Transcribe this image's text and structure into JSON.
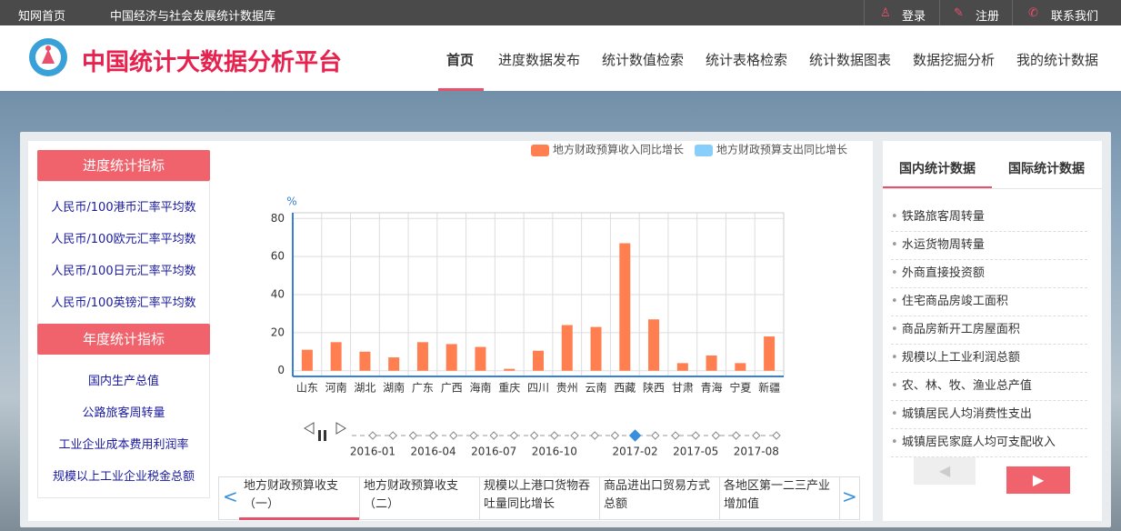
{
  "topbar": {
    "links": [
      "知网首页",
      "中国经济与社会发展统计数据库"
    ],
    "actions": [
      "登录",
      "注册",
      "联系我们"
    ]
  },
  "header": {
    "title": "中国统计大数据分析平台",
    "nav": [
      "首页",
      "进度数据发布",
      "统计数值检索",
      "统计表格检索",
      "统计数据图表",
      "数据挖掘分析",
      "我的统计数据"
    ]
  },
  "left_panel": {
    "sections": [
      {
        "title": "进度统计指标",
        "items": [
          "人民币/100港币汇率平均数",
          "人民币/100欧元汇率平均数",
          "人民币/100日元汇率平均数",
          "人民币/100英镑汇率平均数"
        ]
      },
      {
        "title": "年度统计指标",
        "items": [
          "国内生产总值",
          "公路旅客周转量",
          "工业企业成本费用利润率",
          "规模以上工业企业税金总额"
        ]
      }
    ]
  },
  "chart_data": {
    "type": "bar",
    "y_unit": "%",
    "categories": [
      "山东",
      "河南",
      "湖北",
      "湖南",
      "广东",
      "广西",
      "海南",
      "重庆",
      "四川",
      "贵州",
      "云南",
      "西藏",
      "陕西",
      "甘肃",
      "青海",
      "宁夏",
      "新疆"
    ],
    "series": [
      {
        "name": "地方财政预算收入同比增长",
        "color": "#ff7f50",
        "values": [
          11,
          15,
          10,
          7,
          15,
          14,
          12.5,
          1,
          10.5,
          24,
          23,
          67,
          27,
          4,
          8,
          4,
          18
        ]
      },
      {
        "name": "地方财政预算支出同比增长",
        "color": "#87cefa",
        "values": [
          null,
          null,
          null,
          null,
          null,
          null,
          null,
          null,
          null,
          null,
          null,
          null,
          null,
          null,
          null,
          null,
          null
        ]
      }
    ],
    "ylim": [
      -3,
      83
    ],
    "yticks": [
      0,
      20,
      40,
      60,
      80
    ],
    "grid": true,
    "legend": "top-right"
  },
  "timeline": {
    "labels": [
      "2016-01",
      "2016-04",
      "2016-07",
      "2016-10",
      "2017-02",
      "2017-05",
      "2017-08"
    ]
  },
  "tabs": [
    "地方财政预算收支（一）",
    "地方财政预算收支（二）",
    "规模以上港口货物吞吐量同比增长",
    "商品进出口贸易方式总额",
    "各地区第一二三产业增加值"
  ],
  "right_panel": {
    "tabs": [
      "国内统计数据",
      "国际统计数据"
    ],
    "items": [
      "铁路旅客周转量",
      "水运货物周转量",
      "外商直接投资额",
      "住宅商品房竣工面积",
      "商品房新开工房屋面积",
      "规模以上工业利润总额",
      "农、林、牧、渔业总产值",
      "城镇居民人均消费性支出",
      "城镇居民家庭人均可支配收入"
    ]
  }
}
